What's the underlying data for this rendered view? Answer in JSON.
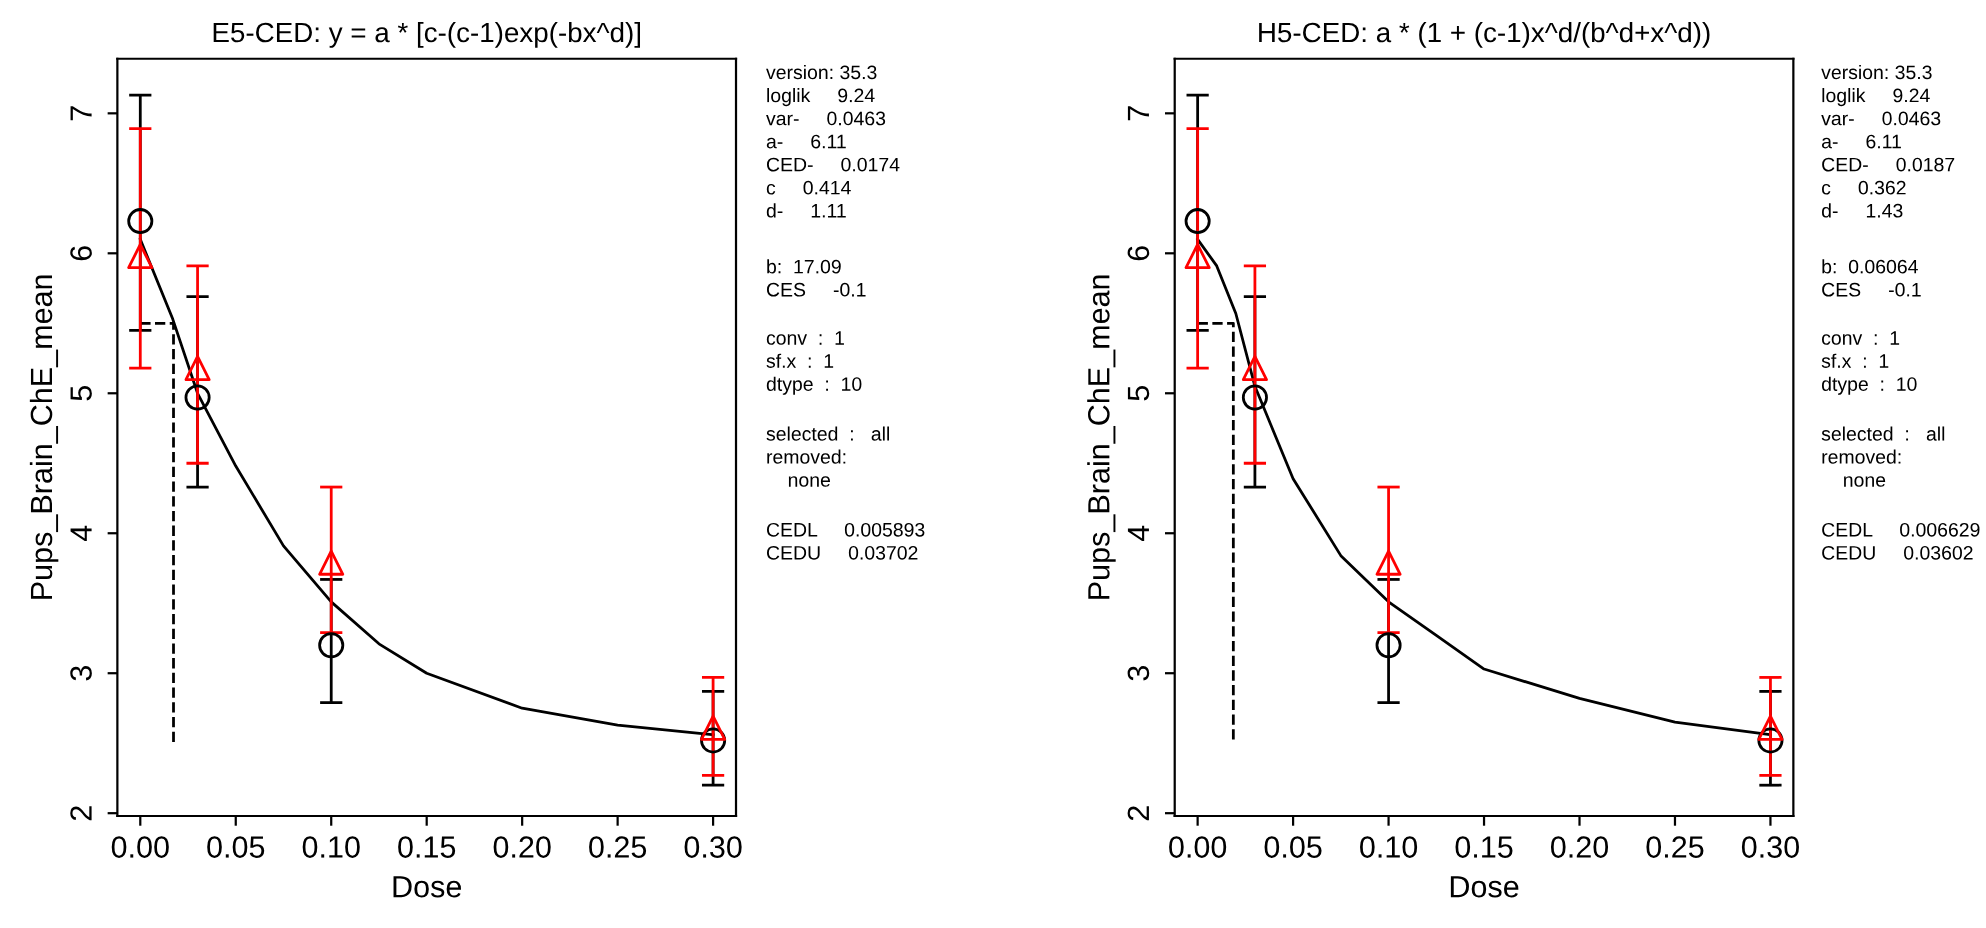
{
  "chart_data": [
    {
      "type": "scatter",
      "title": "E5-CED: y = a * [c-(c-1)exp(-bx^d)]",
      "xlabel": "Dose",
      "ylabel": "Pups_Brain_ChE_mean",
      "xlim": [
        -0.012,
        0.312
      ],
      "ylim": [
        1.98,
        7.39
      ],
      "xticks": [
        {
          "value": 0,
          "label": "0.00"
        },
        {
          "value": 0.05,
          "label": "0.05"
        },
        {
          "value": 0.1,
          "label": "0.10"
        },
        {
          "value": 0.15,
          "label": "0.15"
        },
        {
          "value": 0.2,
          "label": "0.20"
        },
        {
          "value": 0.25,
          "label": "0.25"
        },
        {
          "value": 0.3,
          "label": "0.30"
        }
      ],
      "yticks": [
        2,
        3,
        4,
        5,
        6,
        7
      ],
      "grid": false,
      "legend": false,
      "series": [
        {
          "type": "line",
          "color": "#000000",
          "marker": "none",
          "line_style": "solid",
          "x": [
            0,
            0.017,
            0.03,
            0.05,
            0.075,
            0.1,
            0.125,
            0.15,
            0.2,
            0.25,
            0.3
          ],
          "values": [
            6.1,
            5.53,
            5.0,
            4.48,
            3.91,
            3.51,
            3.21,
            3.0,
            2.75,
            2.63,
            2.56
          ]
        },
        {
          "type": "line",
          "color": "#000000",
          "marker": "none",
          "line_style": "dashed",
          "x": [
            0,
            0.0174,
            0.0174
          ],
          "values": [
            5.5,
            5.5,
            2.5
          ]
        },
        {
          "color": "#000000",
          "marker": "circle",
          "x": [
            0,
            0.03,
            0.1,
            0.3
          ],
          "values": [
            6.23,
            4.97,
            3.2,
            2.52
          ],
          "errors": [
            [
              5.45,
              7.13
            ],
            [
              4.33,
              5.69
            ],
            [
              2.79,
              3.67
            ],
            [
              2.2,
              2.87
            ]
          ]
        },
        {
          "color": "#ff0000",
          "marker": "triangle",
          "x": [
            0,
            0.03,
            0.1,
            0.3
          ],
          "values": [
            5.98,
            5.18,
            3.79,
            2.61
          ],
          "errors": [
            [
              5.18,
              6.89
            ],
            [
              4.5,
              5.91
            ],
            [
              3.29,
              4.33
            ],
            [
              2.27,
              2.97
            ]
          ]
        }
      ],
      "annotations": [
        "version: 35.3\nloglik     9.24\nvar-     0.0463\na-     6.11\nCED-     0.0174\nc     0.414\nd-     1.11",
        "b:  17.09\nCES     -0.1",
        "conv  :  1\nsf.x  :  1\ndtype  :  10",
        "selected  :   all\nremoved:\n    none",
        "CEDL     0.005893\nCEDU     0.03702"
      ]
    },
    {
      "type": "scatter",
      "title": "H5-CED: a * (1 + (c-1)x^d/(b^d+x^d))",
      "xlabel": "Dose",
      "ylabel": "Pups_Brain_ChE_mean",
      "xlim": [
        -0.012,
        0.312
      ],
      "ylim": [
        1.98,
        7.39
      ],
      "xticks": [
        {
          "value": 0,
          "label": "0.00"
        },
        {
          "value": 0.05,
          "label": "0.05"
        },
        {
          "value": 0.1,
          "label": "0.10"
        },
        {
          "value": 0.15,
          "label": "0.15"
        },
        {
          "value": 0.2,
          "label": "0.20"
        },
        {
          "value": 0.25,
          "label": "0.25"
        },
        {
          "value": 0.3,
          "label": "0.30"
        }
      ],
      "yticks": [
        2,
        3,
        4,
        5,
        6,
        7
      ],
      "grid": false,
      "legend": false,
      "series": [
        {
          "type": "line",
          "color": "#000000",
          "marker": "none",
          "line_style": "solid",
          "x": [
            0,
            0.01,
            0.02,
            0.03,
            0.05,
            0.075,
            0.1,
            0.125,
            0.15,
            0.2,
            0.25,
            0.3
          ],
          "values": [
            6.1,
            5.91,
            5.57,
            5.05,
            4.39,
            3.84,
            3.51,
            3.27,
            3.03,
            2.82,
            2.65,
            2.56
          ]
        },
        {
          "type": "line",
          "color": "#000000",
          "marker": "none",
          "line_style": "dashed",
          "x": [
            0,
            0.0187,
            0.0187
          ],
          "values": [
            5.5,
            5.5,
            2.5
          ]
        },
        {
          "color": "#000000",
          "marker": "circle",
          "x": [
            0,
            0.03,
            0.1,
            0.3
          ],
          "values": [
            6.23,
            4.97,
            3.2,
            2.52
          ],
          "errors": [
            [
              5.45,
              7.13
            ],
            [
              4.33,
              5.69
            ],
            [
              2.79,
              3.67
            ],
            [
              2.2,
              2.87
            ]
          ]
        },
        {
          "color": "#ff0000",
          "marker": "triangle",
          "x": [
            0,
            0.03,
            0.1,
            0.3
          ],
          "values": [
            5.98,
            5.18,
            3.79,
            2.61
          ],
          "errors": [
            [
              5.18,
              6.89
            ],
            [
              4.5,
              5.91
            ],
            [
              3.29,
              4.33
            ],
            [
              2.27,
              2.97
            ]
          ]
        }
      ],
      "annotations": [
        "version: 35.3\nloglik     9.24\nvar-     0.0463\na-     6.11\nCED-     0.0187\nc     0.362\nd-     1.43",
        "b:  0.06064\nCES     -0.1",
        "conv  :  1\nsf.x  :  1\ndtype  :  10",
        "selected  :   all\nremoved:\n    none",
        "CEDL     0.006629\nCEDU     0.03602"
      ]
    }
  ]
}
